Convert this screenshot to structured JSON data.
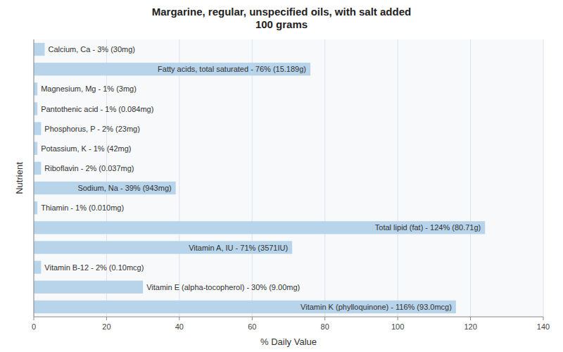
{
  "chart_data": {
    "type": "bar",
    "orientation": "horizontal",
    "title": "Margarine, regular, unspecified oils, with salt added\n100 grams",
    "x_label": "% Daily Value",
    "y_label": "Nutrient",
    "categories": [
      "Calcium, Ca - 3% (30mg)",
      "Fatty acids, total saturated - 76% (15.189g)",
      "Magnesium, Mg - 1% (3mg)",
      "Pantothenic acid - 1% (0.084mg)",
      "Phosphorus, P - 2% (23mg)",
      "Potassium, K - 1% (42mg)",
      "Riboflavin - 2% (0.037mg)",
      "Sodium, Na - 39% (943mg)",
      "Thiamin - 1% (0.010mg)",
      "Total lipid (fat) - 124% (80.71g)",
      "Vitamin A, IU - 71% (3571IU)",
      "Vitamin B-12 - 2% (0.10mcg)",
      "Vitamin E (alpha-tocopherol) - 30% (9.00mg)",
      "Vitamin K (phylloquinone) - 116% (93.0mcg)"
    ],
    "values": [
      3,
      76,
      1,
      1,
      2,
      1,
      2,
      39,
      1,
      124,
      71,
      2,
      30,
      116
    ],
    "color": "#b8d4ea",
    "xlim": [
      0,
      140
    ],
    "xticks": [
      0,
      20,
      40,
      60,
      80,
      100,
      120,
      140
    ],
    "grid": true,
    "tick_labels": "x"
  }
}
